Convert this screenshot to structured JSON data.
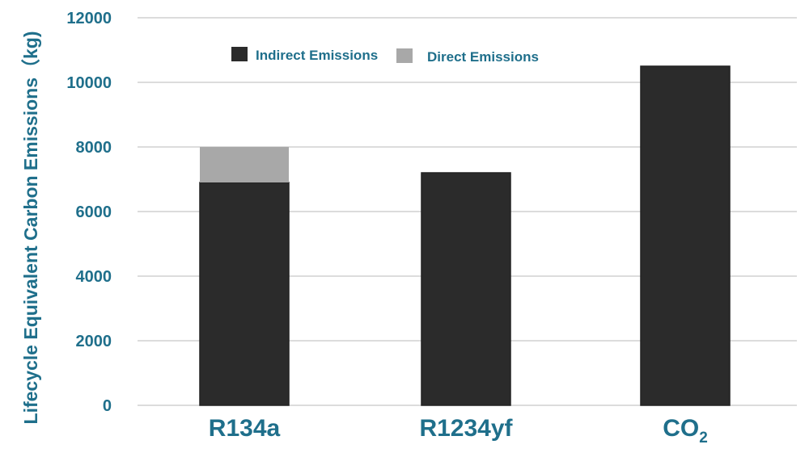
{
  "colors": {
    "indirect": "#2b2b2b",
    "direct": "#a8a8a8",
    "text": "#1f6f8b",
    "grid": "#c8c8c8"
  },
  "chart_data": {
    "type": "bar",
    "stacked": true,
    "title": "",
    "xlabel": "",
    "ylabel": "Lifecycle Equivalent Carbon Emissions（kg)",
    "ylim": [
      0,
      12000
    ],
    "yticks": [
      0,
      2000,
      4000,
      6000,
      8000,
      10000,
      12000
    ],
    "grid": true,
    "legend_position": "top-left",
    "categories": [
      {
        "text": "R134a",
        "sub": ""
      },
      {
        "text": "R1234yf",
        "sub": ""
      },
      {
        "text": "CO",
        "sub": "2"
      }
    ],
    "series": [
      {
        "name": "Indirect Emissions",
        "color": "#2b2b2b",
        "values": [
          6900,
          7200,
          10500
        ]
      },
      {
        "name": "Direct Emissions",
        "color": "#a8a8a8",
        "values": [
          1100,
          0,
          0
        ]
      }
    ]
  }
}
